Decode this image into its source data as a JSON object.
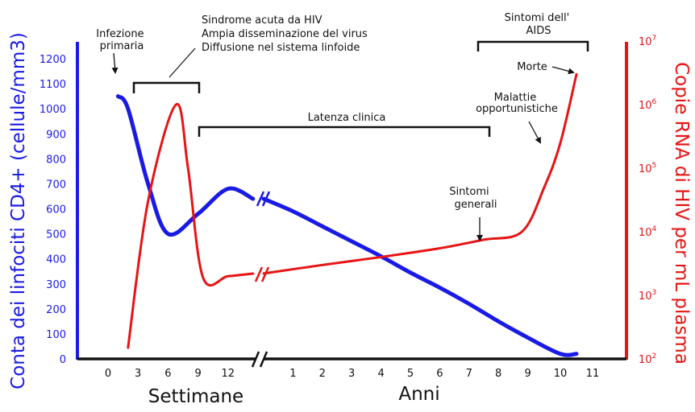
{
  "chart_data": {
    "type": "line",
    "colors": {
      "cd4": "#1a1ae6",
      "rna": "#e61414",
      "axis": "#111111"
    },
    "xlabel_weeks": "Settimane",
    "xlabel_years": "Anni",
    "ylabel_left": "Conta dei linfociti CD4+ (cellule/mm3)",
    "ylabel_right": "Copie RNA di HIV per mL plasma",
    "x_ticks_weeks": [
      "0",
      "3",
      "6",
      "9",
      "12"
    ],
    "x_ticks_years": [
      "1",
      "2",
      "3",
      "4",
      "5",
      "6",
      "7",
      "8",
      "9",
      "10",
      "11"
    ],
    "y_left_ticks": [
      "0",
      "100",
      "200",
      "300",
      "400",
      "500",
      "600",
      "700",
      "800",
      "900",
      "1000",
      "1100",
      "1200"
    ],
    "y_left_range": [
      0,
      1200
    ],
    "y_right_scale": "log",
    "y_right_range": [
      100,
      10000000
    ],
    "y_right_ticks": [
      {
        "base": "10",
        "exp": "2"
      },
      {
        "base": "10",
        "exp": "3"
      },
      {
        "base": "10",
        "exp": "4"
      },
      {
        "base": "10",
        "exp": "5"
      },
      {
        "base": "10",
        "exp": "6"
      },
      {
        "base": "10",
        "exp": "7"
      }
    ],
    "axis_break": true,
    "grid": false,
    "series": [
      {
        "key": "cd4",
        "axis": "left",
        "weeks": [
          [
            1,
            1050
          ],
          [
            2,
            1000
          ],
          [
            4,
            700
          ],
          [
            6,
            500
          ],
          [
            9,
            580
          ],
          [
            12,
            680
          ],
          [
            14.5,
            640
          ]
        ],
        "years": [
          [
            0,
            640
          ],
          [
            1,
            590
          ],
          [
            2,
            530
          ],
          [
            3,
            470
          ],
          [
            4,
            410
          ],
          [
            5,
            345
          ],
          [
            6,
            285
          ],
          [
            7,
            220
          ],
          [
            8,
            150
          ],
          [
            9,
            85
          ],
          [
            10,
            20
          ],
          [
            10.5,
            20
          ]
        ]
      },
      {
        "key": "rna",
        "axis": "right",
        "weeks": [
          [
            2,
            150
          ],
          [
            4,
            30000
          ],
          [
            6.8,
            1000000
          ],
          [
            8,
            100000
          ],
          [
            9.5,
            1900
          ],
          [
            12,
            2000
          ],
          [
            14.5,
            2200
          ]
        ],
        "years": [
          [
            0,
            2200
          ],
          [
            2,
            3000
          ],
          [
            4,
            4000
          ],
          [
            6,
            5500
          ],
          [
            7.5,
            7500
          ],
          [
            8.8,
            10000
          ],
          [
            9.5,
            50000
          ],
          [
            10,
            250000
          ],
          [
            10.5,
            3000000
          ]
        ]
      }
    ],
    "annotations": {
      "infection": [
        "Infezione",
        "primaria"
      ],
      "acute": [
        "Sindrome acuta da HIV",
        "Ampia disseminazione del virus",
        "Diffusione nel sistema linfoide"
      ],
      "latency": "Latenza clinica",
      "general_symptoms": [
        "Sintomi",
        "generali"
      ],
      "opportunistic": [
        "Malattie",
        "opportunistiche"
      ],
      "death": "Morte",
      "aids_symptoms": [
        "Sintomi dell'",
        "AIDS"
      ]
    }
  }
}
